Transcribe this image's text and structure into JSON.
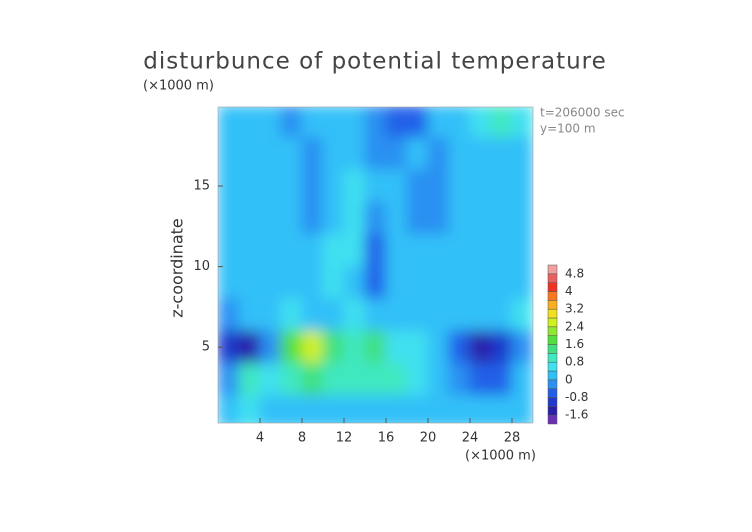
{
  "chart_data": {
    "type": "contour",
    "title": "disturbunce of potential temperature",
    "ylabel": "z-coordinate",
    "xunit": "(×1000 m)",
    "yunit": "(×1000 m)",
    "annotations": [
      "t=206000 sec",
      "y=100 m"
    ],
    "xlim": [
      0,
      30
    ],
    "ylim": [
      0.3,
      19.9
    ],
    "xticks": [
      4,
      8,
      12,
      16,
      20,
      24,
      28
    ],
    "yticks": [
      5,
      10,
      15
    ],
    "x": [
      1,
      3,
      5,
      7,
      9,
      11,
      13,
      15,
      17,
      19,
      21,
      23,
      25,
      27,
      29
    ],
    "y": [
      19,
      17,
      15,
      13,
      11,
      9,
      7,
      5,
      3,
      1
    ],
    "z": [
      [
        0.2,
        0.2,
        0,
        -0.3,
        0,
        0.2,
        0.2,
        -0.4,
        -0.6,
        -0.6,
        0,
        0.2,
        0.4,
        0.8,
        0.6
      ],
      [
        0,
        0.2,
        0.2,
        0,
        -0.3,
        0.2,
        0.2,
        -0.2,
        -0.4,
        0,
        -0.3,
        0,
        0.2,
        0.2,
        0.2
      ],
      [
        0.2,
        0.2,
        0.2,
        0.2,
        -0.3,
        0.2,
        0.4,
        0.2,
        0,
        -0.4,
        -0.4,
        0.2,
        0.2,
        0.2,
        0.2
      ],
      [
        0.2,
        0.2,
        0.2,
        0.2,
        -0.2,
        0.2,
        0.4,
        -0.2,
        0.2,
        -0.4,
        -0.3,
        0.2,
        0.2,
        0.2,
        0
      ],
      [
        0.2,
        0.2,
        0.2,
        0.2,
        0,
        0.4,
        0.4,
        -0.5,
        0.2,
        0.2,
        0.2,
        0,
        0.2,
        0.2,
        0.2
      ],
      [
        0.2,
        0.2,
        0.2,
        0.2,
        0,
        0.4,
        0.2,
        -0.6,
        0.2,
        0.2,
        0.2,
        0.2,
        0,
        0,
        0.2
      ],
      [
        -0.4,
        0.2,
        0.2,
        0.4,
        0,
        0.2,
        0.4,
        0.2,
        0.2,
        0.2,
        0.2,
        0.2,
        0.2,
        0.2,
        0.4
      ],
      [
        -1.0,
        -1.4,
        -0.4,
        1.8,
        2.4,
        1.2,
        1.0,
        1.2,
        0.6,
        0.4,
        0.2,
        -0.8,
        -1.6,
        -1.0,
        -0.4
      ],
      [
        -0.2,
        0.8,
        0.4,
        0.8,
        1.2,
        1.0,
        1.0,
        1.0,
        0.8,
        0.4,
        0.2,
        -0.4,
        -0.8,
        -0.6,
        0
      ],
      [
        0.2,
        0.4,
        0.2,
        0.2,
        0.2,
        0.2,
        0.2,
        0.2,
        0.2,
        0.2,
        0.2,
        0.2,
        0.2,
        0.2,
        0.2
      ]
    ],
    "colorbar": {
      "levels": [
        -2.0,
        -1.6,
        -1.2,
        -0.8,
        -0.4,
        0,
        0.4,
        0.8,
        1.2,
        1.6,
        2.0,
        2.4,
        2.8,
        3.2,
        3.6,
        4.0,
        4.4,
        4.8,
        5.2
      ],
      "colors": [
        "#6b2fb5",
        "#2a1fa8",
        "#1f3acc",
        "#2060e8",
        "#2a90f2",
        "#30c0f8",
        "#40e0f0",
        "#40e8c0",
        "#40e080",
        "#50e040",
        "#90e830",
        "#d0f020",
        "#f0e020",
        "#f8b020",
        "#f87820",
        "#f03020",
        "#e86060",
        "#f0a0a0"
      ],
      "ticks": [
        -1.6,
        -0.8,
        0,
        0.8,
        1.6,
        2.4,
        3.2,
        4,
        4.8
      ]
    }
  }
}
